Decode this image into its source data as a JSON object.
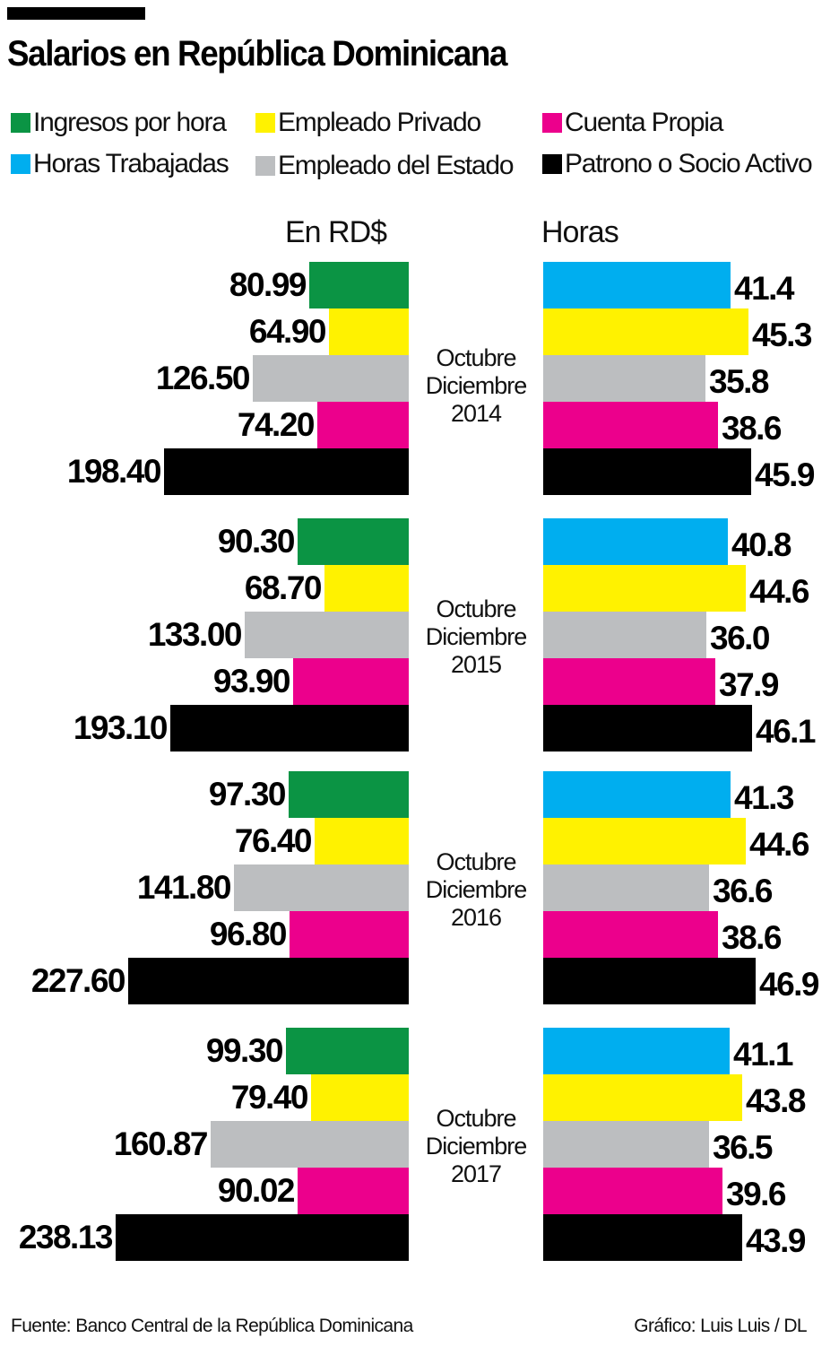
{
  "header": {
    "title": "Salarios en República Dominicana"
  },
  "legend": [
    {
      "label": "Ingresos por hora",
      "color": "#0b9444",
      "icon": "green-square-icon"
    },
    {
      "label": "Empleado Privado",
      "color": "#fff200",
      "icon": "yellow-square-icon"
    },
    {
      "label": "Cuenta Propia",
      "color": "#ec008c",
      "icon": "magenta-square-icon"
    },
    {
      "label": "Horas Trabajadas",
      "color": "#00aeef",
      "icon": "cyan-square-icon"
    },
    {
      "label": "Empleado del Estado",
      "color": "#bcbec0",
      "icon": "gray-square-icon"
    },
    {
      "label": "Patrono o Socio Activo",
      "color": "#000000",
      "icon": "black-square-icon"
    }
  ],
  "columns": {
    "left": "En RD$",
    "right": "Horas"
  },
  "periods": [
    {
      "line1": "Octubre",
      "line2": "Diciembre",
      "year": "2014",
      "rd": [
        "80.99",
        "64.90",
        "126.50",
        "74.20",
        "198.40"
      ],
      "horas": [
        "41.4",
        "45.3",
        "35.8",
        "38.6",
        "45.9"
      ]
    },
    {
      "line1": "Octubre",
      "line2": "Diciembre",
      "year": "2015",
      "rd": [
        "90.30",
        "68.70",
        "133.00",
        "93.90",
        "193.10"
      ],
      "horas": [
        "40.8",
        "44.6",
        "36.0",
        "37.9",
        "46.1"
      ]
    },
    {
      "line1": "Octubre",
      "line2": "Diciembre",
      "year": "2016",
      "rd": [
        "97.30",
        "76.40",
        "141.80",
        "96.80",
        "227.60"
      ],
      "horas": [
        "41.3",
        "44.6",
        "36.6",
        "38.6",
        "46.9"
      ]
    },
    {
      "line1": "Octubre",
      "line2": "Diciembre",
      "year": "2017",
      "rd": [
        "99.30",
        "79.40",
        "160.87",
        "90.02",
        "238.13"
      ],
      "horas": [
        "41.1",
        "43.8",
        "36.5",
        "39.6",
        "43.9"
      ]
    }
  ],
  "colors": {
    "rd": [
      "#0b9444",
      "#fff200",
      "#bcbec0",
      "#ec008c",
      "#000000"
    ],
    "horas": [
      "#00aeef",
      "#fff200",
      "#bcbec0",
      "#ec008c",
      "#000000"
    ]
  },
  "footer": {
    "source": "Fuente: Banco Central de la República Dominicana",
    "credit": "Gráfico: Luis Luis / DL"
  },
  "chart_data": [
    {
      "type": "bar",
      "orientation": "horizontal",
      "title": "Salarios en República Dominicana — En RD$",
      "xlabel": "En RD$",
      "ylabel": "",
      "categories": [
        "Oct-Dic 2014",
        "Oct-Dic 2015",
        "Oct-Dic 2016",
        "Oct-Dic 2017"
      ],
      "series": [
        {
          "name": "Ingresos por hora",
          "color": "#0b9444",
          "values": [
            80.99,
            90.3,
            97.3,
            99.3
          ]
        },
        {
          "name": "Empleado Privado",
          "color": "#fff200",
          "values": [
            64.9,
            68.7,
            76.4,
            79.4
          ]
        },
        {
          "name": "Empleado del Estado",
          "color": "#bcbec0",
          "values": [
            126.5,
            133.0,
            141.8,
            160.87
          ]
        },
        {
          "name": "Cuenta Propia",
          "color": "#ec008c",
          "values": [
            74.2,
            93.9,
            96.8,
            90.02
          ]
        },
        {
          "name": "Patrono o Socio Activo",
          "color": "#000000",
          "values": [
            198.4,
            193.1,
            227.6,
            238.13
          ]
        }
      ],
      "grid": false,
      "legend_position": "top"
    },
    {
      "type": "bar",
      "orientation": "horizontal",
      "title": "Salarios en República Dominicana — Horas",
      "xlabel": "Horas",
      "ylabel": "",
      "categories": [
        "Oct-Dic 2014",
        "Oct-Dic 2015",
        "Oct-Dic 2016",
        "Oct-Dic 2017"
      ],
      "series": [
        {
          "name": "Horas Trabajadas",
          "color": "#00aeef",
          "values": [
            41.4,
            40.8,
            41.3,
            41.1
          ]
        },
        {
          "name": "Empleado Privado",
          "color": "#fff200",
          "values": [
            45.3,
            44.6,
            44.6,
            43.8
          ]
        },
        {
          "name": "Empleado del Estado",
          "color": "#bcbec0",
          "values": [
            35.8,
            36.0,
            36.6,
            36.5
          ]
        },
        {
          "name": "Cuenta Propia",
          "color": "#ec008c",
          "values": [
            38.6,
            37.9,
            38.6,
            39.6
          ]
        },
        {
          "name": "Patrono o Socio Activo",
          "color": "#000000",
          "values": [
            45.9,
            46.1,
            46.9,
            43.9
          ]
        }
      ],
      "grid": false,
      "legend_position": "top"
    }
  ]
}
